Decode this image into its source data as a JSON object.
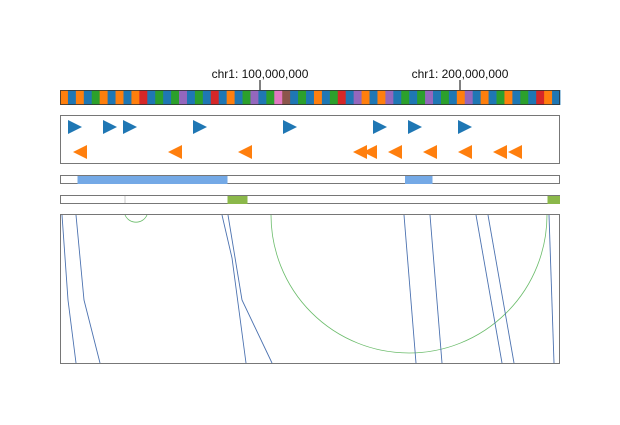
{
  "ideogram": {
    "chromosome": "chr1",
    "ticks": [
      {
        "label": "chr1: 100,000,000",
        "fraction": 0.4
      },
      {
        "label": "chr1: 200,000,000",
        "fraction": 0.8
      }
    ],
    "band_colors": {
      "blue": "#1f77b4",
      "orange": "#ff7f0e",
      "green": "#2ca02c",
      "red": "#d62728",
      "purple": "#9467bd",
      "brown": "#8c564b",
      "pink": "#e377c2"
    },
    "band_sequence": [
      "orange",
      "blue",
      "orange",
      "blue",
      "green",
      "orange",
      "blue",
      "orange",
      "blue",
      "orange",
      "red",
      "blue",
      "green",
      "blue",
      "green",
      "purple",
      "blue",
      "green",
      "blue",
      "red",
      "blue",
      "orange",
      "blue",
      "green",
      "purple",
      "blue",
      "green",
      "pink",
      "brown",
      "blue",
      "green",
      "blue",
      "orange",
      "blue",
      "green",
      "red",
      "blue",
      "purple",
      "orange",
      "blue",
      "orange",
      "purple",
      "blue",
      "green",
      "blue",
      "green",
      "purple",
      "blue",
      "green",
      "blue",
      "orange",
      "purple",
      "blue",
      "orange",
      "blue",
      "green",
      "orange",
      "blue",
      "green",
      "blue",
      "red",
      "orange",
      "blue"
    ]
  },
  "strand_track": {
    "forward_color": "#1f77b4",
    "reverse_color": "#ff7f0e",
    "forward_positions": [
      0.03,
      0.1,
      0.14,
      0.28,
      0.46,
      0.64,
      0.71,
      0.81
    ],
    "reverse_positions": [
      0.04,
      0.23,
      0.37,
      0.6,
      0.62,
      0.67,
      0.74,
      0.81,
      0.88,
      0.91
    ]
  },
  "interval_track_1": {
    "color": "#74a9e6",
    "intervals": [
      [
        0.035,
        0.068
      ],
      [
        0.068,
        0.335
      ],
      [
        0.69,
        0.745
      ]
    ]
  },
  "interval_track_2": {
    "color": "#8bb84a",
    "intervals": [
      [
        0.335,
        0.375
      ],
      [
        0.975,
        1.0
      ]
    ]
  },
  "arc_track": {
    "line_color": "#4c72b0",
    "arc_color": "#2ca02c"
  }
}
